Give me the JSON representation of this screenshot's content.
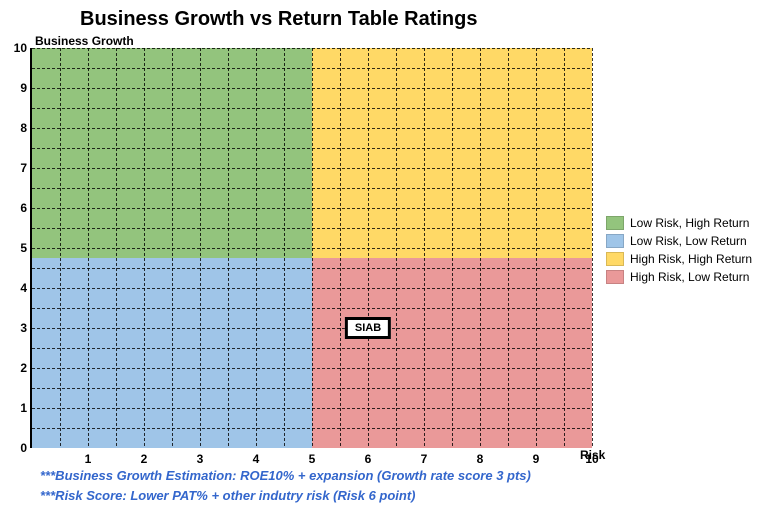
{
  "chart": {
    "type": "quadrant-scatter",
    "title": "Business Growth vs Return Table Ratings",
    "y_axis_label": "Business Growth",
    "x_axis_label": "Risk",
    "xlim": [
      0,
      10
    ],
    "ylim": [
      0,
      10
    ],
    "x_ticks": [
      1,
      2,
      3,
      4,
      5,
      6,
      7,
      8,
      9,
      10
    ],
    "y_ticks": [
      0,
      1,
      2,
      3,
      4,
      5,
      6,
      7,
      8,
      9,
      10
    ],
    "x_split": 5,
    "y_split": 4.75,
    "grid_x_step": 0.5,
    "grid_y_step": 0.5,
    "background_color": "#ffffff",
    "grid_color": "#000000",
    "grid_dash": true,
    "axis_color": "#000000",
    "quadrants": {
      "top_left": {
        "color": "#93c47d",
        "label": "Low Risk, High Return"
      },
      "top_right": {
        "color": "#ffd966",
        "label": "High Risk, High Return"
      },
      "bottom_left": {
        "color": "#9fc5e8",
        "label": "Low Risk, Low Return"
      },
      "bottom_right": {
        "color": "#ea9999",
        "label": "High Risk, Low Return"
      }
    },
    "legend_order": [
      "top_left",
      "bottom_left",
      "top_right",
      "bottom_right"
    ],
    "data_points": [
      {
        "x": 6,
        "y": 3,
        "label": "SIAB"
      }
    ],
    "data_label_bg": "#ffffff",
    "data_label_border": "#000000",
    "title_fontsize": 20,
    "axis_label_fontsize": 12,
    "tick_fontsize": 12
  },
  "footnotes": {
    "line1": "***Business Growth Estimation: ROE10% + expansion (Growth rate score 3 pts)",
    "line2": "***Risk Score: Lower PAT% + other indutry risk (Risk 6 point)",
    "color": "#3366cc",
    "fontsize": 13
  }
}
